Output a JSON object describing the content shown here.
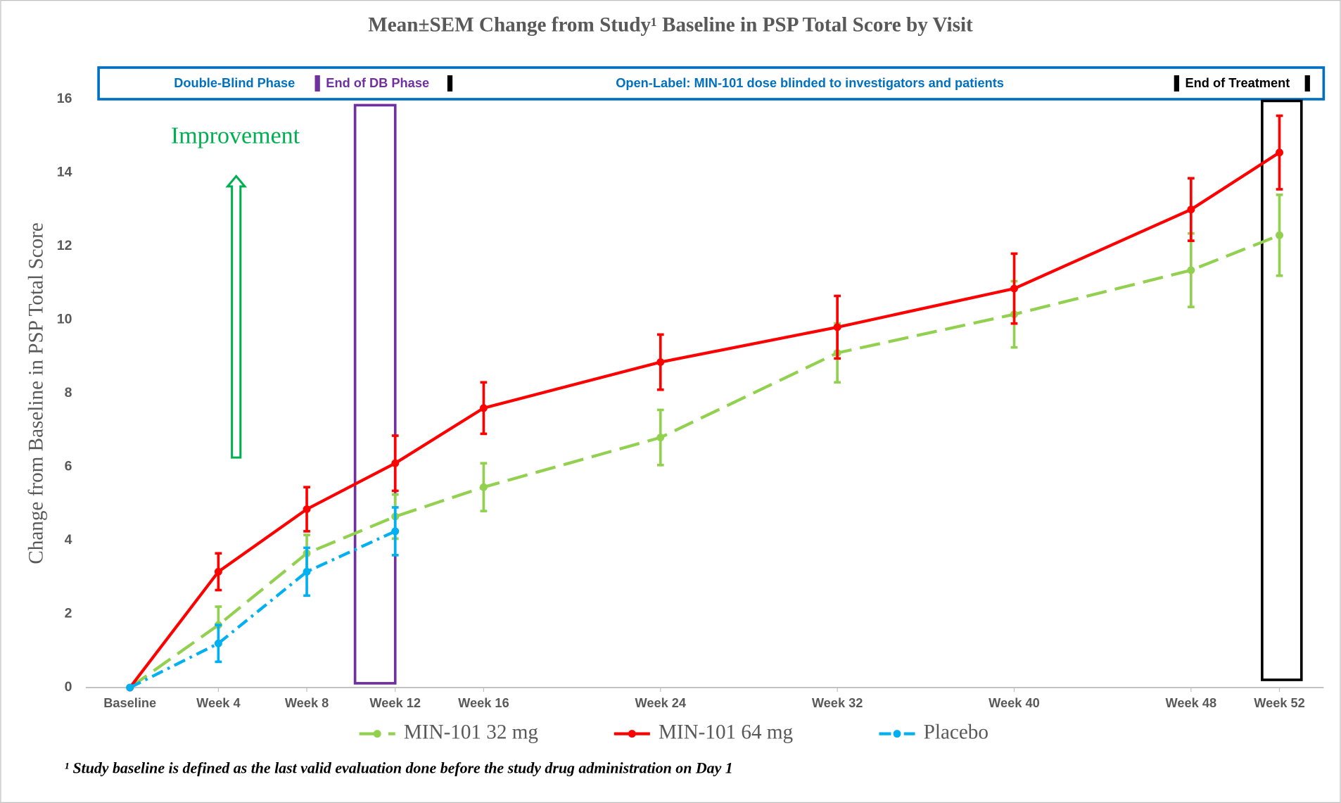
{
  "chart_data": {
    "type": "line",
    "title": "Mean±SEM Change from Study¹ Baseline in PSP Total Score by Visit",
    "ylabel": "Change from Baseline in PSP Total Score",
    "x": [
      0,
      4,
      8,
      12,
      16,
      24,
      32,
      40,
      48,
      52
    ],
    "xlim": [
      -2,
      54
    ],
    "xticks": [
      {
        "value": 0,
        "label": "Baseline"
      },
      {
        "value": 4,
        "label": "Week 4"
      },
      {
        "value": 8,
        "label": "Week 8"
      },
      {
        "value": 12,
        "label": "Week 12"
      },
      {
        "value": 16,
        "label": "Week 16"
      },
      {
        "value": 24,
        "label": "Week 24"
      },
      {
        "value": 32,
        "label": "Week 32"
      },
      {
        "value": 40,
        "label": "Week 40"
      },
      {
        "value": 48,
        "label": "Week 48"
      },
      {
        "value": 52,
        "label": "Week 52"
      }
    ],
    "ylim": [
      0,
      16
    ],
    "yticks": [
      0,
      2,
      4,
      6,
      8,
      10,
      12,
      14,
      16
    ],
    "grid": false,
    "legend": "bottom",
    "series": [
      {
        "name": "MIN-101 32 mg",
        "color": "#92d050",
        "line_style": "dashed",
        "values": [
          0,
          1.7,
          3.65,
          4.65,
          5.45,
          6.8,
          9.1,
          10.15,
          11.35,
          12.3
        ],
        "errors": [
          0,
          0.5,
          0.5,
          0.6,
          0.65,
          0.75,
          0.8,
          0.9,
          1.0,
          1.1
        ]
      },
      {
        "name": "MIN-101 64 mg",
        "color": "#ff0000",
        "line_style": "solid",
        "values": [
          0,
          3.15,
          4.85,
          6.1,
          7.6,
          8.85,
          9.8,
          10.85,
          13.0,
          14.55
        ],
        "errors": [
          0,
          0.5,
          0.6,
          0.75,
          0.7,
          0.75,
          0.85,
          0.95,
          0.85,
          1.0
        ]
      },
      {
        "name": "Placebo",
        "color": "#00b0f0",
        "line_style": "dashdot",
        "values": [
          0,
          1.2,
          3.15,
          4.25,
          null,
          null,
          null,
          null,
          null,
          null
        ],
        "errors": [
          0,
          0.5,
          0.65,
          0.65,
          null,
          null,
          null,
          null,
          null,
          null
        ]
      }
    ],
    "phases": {
      "double_blind": "Double-Blind Phase",
      "end_db": "End of DB Phase",
      "open_label": "Open-Label: MIN-101 dose blinded to investigators and patients",
      "end_treatment": "End of Treatment"
    },
    "annotation": "Improvement",
    "footnote": "¹ Study baseline is defined as the last valid evaluation done before the study drug administration on Day 1"
  }
}
